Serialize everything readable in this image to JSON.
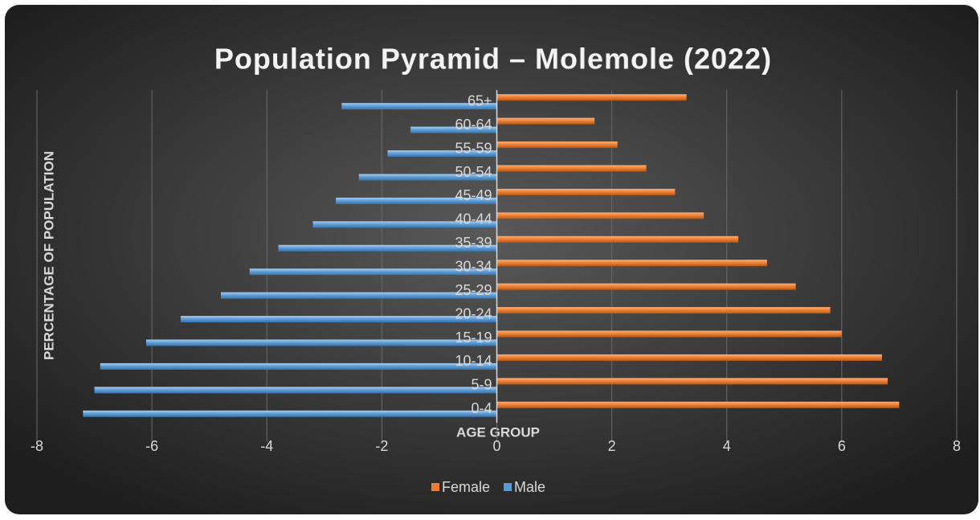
{
  "chart_data": {
    "type": "bar",
    "orientation": "horizontal",
    "title": "Population Pyramid – Molemole (2022)",
    "x_label": "AGE GROUP",
    "y_label": "PERCENTAGE OF POPULATION",
    "categories": [
      "0-4",
      "5-9",
      "10-14",
      "15-19",
      "20-24",
      "25-29",
      "30-34",
      "35-39",
      "40-44",
      "45-49",
      "50-54",
      "55-59",
      "60-64",
      "65+"
    ],
    "series": [
      {
        "name": "Female",
        "color": "#ed7d31",
        "values": [
          7.0,
          6.8,
          6.7,
          6.0,
          5.8,
          5.2,
          4.7,
          4.2,
          3.6,
          3.1,
          2.6,
          2.1,
          1.7,
          3.3
        ]
      },
      {
        "name": "Male",
        "color": "#5b9bd5",
        "values": [
          -7.2,
          -7.0,
          -6.9,
          -6.1,
          -5.5,
          -4.8,
          -4.3,
          -3.8,
          -3.2,
          -2.8,
          -2.4,
          -1.9,
          -1.5,
          -2.7
        ]
      }
    ],
    "xlim": [
      -8,
      8
    ],
    "xticks": [
      -8,
      -6,
      -4,
      -2,
      0,
      2,
      4,
      6,
      8
    ],
    "grid": true,
    "legend": "bottom"
  }
}
